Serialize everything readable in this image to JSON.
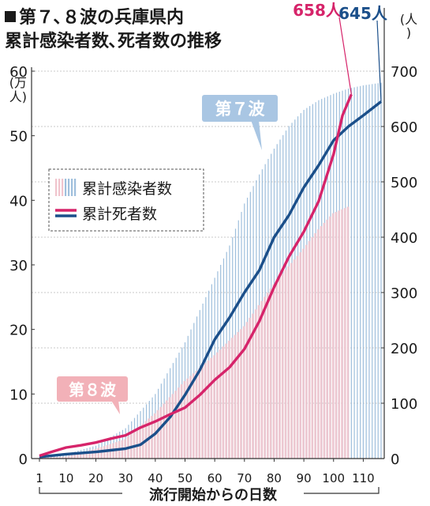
{
  "colors": {
    "infection_bar_wave7": "#9fbfdc",
    "infection_bar_wave8": "#f0c4cd",
    "death_line_wave7": "#1b4f8a",
    "death_line_wave8": "#d6246a",
    "label_box_wave7": "#a9c6e3",
    "label_box_wave8": "#f2b1b8",
    "grid": "#c8c8c8",
    "axis": "#333333",
    "text": "#1a1a1a"
  },
  "header": {
    "title_line1": "第７､８波の兵庫県内",
    "title_line2": "累計感染者数､死者数の推移"
  },
  "chart_data": {
    "type": "bar+line",
    "title": "第７､８波の兵庫県内 累計感染者数､死者数の推移",
    "xlabel": "流行開始からの日数",
    "x_ticks": [
      1,
      10,
      20,
      30,
      40,
      50,
      60,
      70,
      80,
      90,
      100,
      110
    ],
    "xlim": [
      1,
      116
    ],
    "left_axis": {
      "label": "(万人)",
      "ticks": [
        0,
        10,
        20,
        30,
        40,
        50,
        60
      ],
      "ylim": [
        0,
        60
      ]
    },
    "right_axis": {
      "label": "(人)",
      "ticks": [
        0,
        100,
        200,
        300,
        400,
        500,
        600,
        700
      ],
      "ylim": [
        0,
        700
      ]
    },
    "legend": {
      "position": "center-left",
      "bars_label": "累計感染者数",
      "line_label": "累計死者数"
    },
    "series": [
      {
        "name": "第７波",
        "kind": "cumulative_infections",
        "axis": "left",
        "x": [
          1,
          10,
          20,
          30,
          40,
          50,
          55,
          60,
          65,
          70,
          75,
          80,
          85,
          90,
          95,
          100,
          105,
          110,
          116
        ],
        "y": [
          0.2,
          0.7,
          2.0,
          4.7,
          10.0,
          18.0,
          23.0,
          28.0,
          33.0,
          39.5,
          44.0,
          48.0,
          51.5,
          54.0,
          55.5,
          56.5,
          57.3,
          57.8,
          58.2
        ]
      },
      {
        "name": "第８波",
        "kind": "cumulative_infections",
        "axis": "left",
        "x": [
          1,
          10,
          20,
          30,
          40,
          50,
          60,
          70,
          80,
          90,
          95,
          100,
          105
        ],
        "y": [
          0.1,
          0.3,
          1.5,
          3.0,
          7.0,
          12.0,
          16.0,
          20.5,
          27.0,
          32.5,
          35.5,
          38.0,
          39.0
        ]
      },
      {
        "name": "第７波",
        "kind": "cumulative_deaths",
        "axis": "right",
        "x": [
          1,
          10,
          20,
          25,
          30,
          35,
          40,
          45,
          50,
          55,
          60,
          65,
          70,
          75,
          80,
          85,
          90,
          95,
          100,
          105,
          110,
          116
        ],
        "y": [
          3,
          8,
          12,
          15,
          18,
          25,
          45,
          75,
          115,
          160,
          215,
          255,
          300,
          340,
          400,
          440,
          490,
          530,
          575,
          600,
          620,
          645
        ]
      },
      {
        "name": "第８波",
        "kind": "cumulative_deaths",
        "axis": "right",
        "x": [
          1,
          5,
          10,
          15,
          20,
          25,
          30,
          35,
          40,
          45,
          50,
          55,
          60,
          65,
          70,
          75,
          80,
          85,
          90,
          95,
          100,
          103,
          106
        ],
        "y": [
          5,
          12,
          20,
          24,
          29,
          36,
          42,
          56,
          67,
          80,
          92,
          115,
          142,
          165,
          198,
          248,
          310,
          365,
          410,
          465,
          550,
          620,
          658
        ]
      }
    ],
    "annotations": {
      "wave7_label": "第７波",
      "wave8_label": "第８波",
      "wave7_end_value": "645人",
      "wave8_end_value": "658人"
    }
  }
}
